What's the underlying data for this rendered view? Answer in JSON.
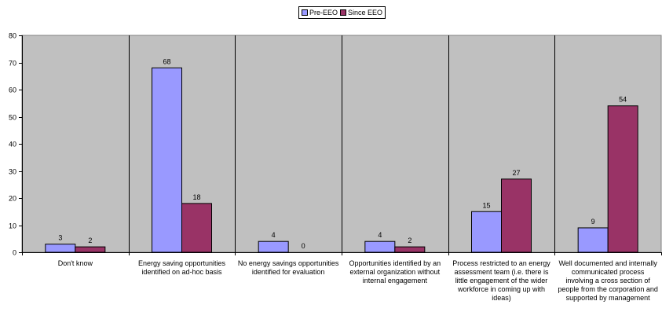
{
  "chart_data": {
    "type": "bar",
    "title": "",
    "xlabel": "",
    "ylabel": "",
    "ylim": [
      0,
      80
    ],
    "yticks": [
      0,
      10,
      20,
      30,
      40,
      50,
      60,
      70,
      80
    ],
    "grid": false,
    "legend_position": "top-center",
    "plot_background": "#c0c0c0",
    "categories": [
      "Don't know",
      "Energy saving opportunities identified on ad-hoc basis",
      "No energy savings opportunities identified for evaluation",
      "Opportunities identified by an external organization without internal engagement",
      "Process restricted to an energy assessment team (i.e. there is little engagement of the wider workforce in coming up with ideas)",
      "Well documented and internally communicated process involving a cross section of people from the corporation and supported by management"
    ],
    "series": [
      {
        "name": "Pre-EEO",
        "color": "#9999ff",
        "values": [
          3,
          68,
          4,
          4,
          15,
          9
        ]
      },
      {
        "name": "Since EEO",
        "color": "#993366",
        "values": [
          2,
          18,
          0,
          2,
          27,
          54
        ]
      }
    ]
  }
}
